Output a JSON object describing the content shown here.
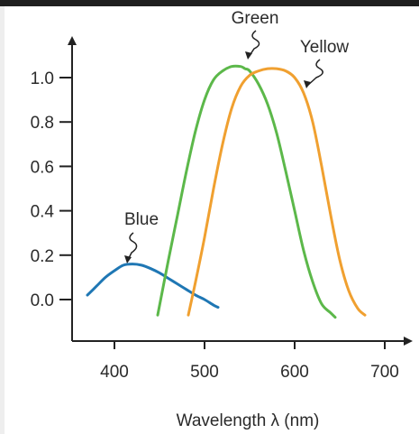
{
  "chart_data": {
    "type": "line",
    "title": "",
    "xlabel": "Wavelength λ (nm)",
    "ylabel": "",
    "xlim": [
      350,
      710
    ],
    "ylim": [
      -0.05,
      1.18
    ],
    "x_ticks": [
      "400",
      "500",
      "600",
      "700"
    ],
    "x_tick_values": [
      400,
      500,
      600,
      700
    ],
    "y_ticks": [
      "0.0",
      "0.2",
      "0.4",
      "0.6",
      "0.8",
      "1.0"
    ],
    "y_tick_values": [
      0.0,
      0.2,
      0.4,
      0.6,
      0.8,
      1.0
    ],
    "grid": false,
    "series": [
      {
        "name": "Blue",
        "color": "#1f77b4",
        "x": [
          370,
          380,
          390,
          400,
          410,
          420,
          430,
          440,
          450,
          460,
          470,
          480,
          490,
          500,
          510,
          515
        ],
        "y": [
          0.02,
          0.06,
          0.1,
          0.13,
          0.155,
          0.16,
          0.155,
          0.14,
          0.12,
          0.095,
          0.07,
          0.045,
          0.02,
          0.0,
          -0.025,
          -0.035
        ]
      },
      {
        "name": "Green",
        "color": "#5cb84a",
        "x": [
          448,
          460,
          470,
          480,
          490,
          500,
          510,
          520,
          530,
          540,
          545,
          550,
          560,
          570,
          580,
          590,
          600,
          610,
          620,
          630,
          640,
          645
        ],
        "y": [
          -0.07,
          0.18,
          0.38,
          0.58,
          0.76,
          0.9,
          0.99,
          1.03,
          1.05,
          1.05,
          1.04,
          1.03,
          0.97,
          0.88,
          0.75,
          0.58,
          0.4,
          0.22,
          0.08,
          -0.02,
          -0.06,
          -0.08
        ]
      },
      {
        "name": "Yellow",
        "color": "#f0a030",
        "x": [
          482,
          490,
          500,
          510,
          520,
          530,
          540,
          550,
          560,
          570,
          580,
          590,
          600,
          610,
          620,
          630,
          640,
          650,
          660,
          670,
          678
        ],
        "y": [
          -0.07,
          0.08,
          0.28,
          0.5,
          0.7,
          0.86,
          0.96,
          1.01,
          1.03,
          1.04,
          1.04,
          1.03,
          1.0,
          0.93,
          0.8,
          0.6,
          0.38,
          0.18,
          0.04,
          -0.04,
          -0.07
        ]
      }
    ],
    "annotations": [
      "Blue",
      "Green",
      "Yellow"
    ]
  }
}
